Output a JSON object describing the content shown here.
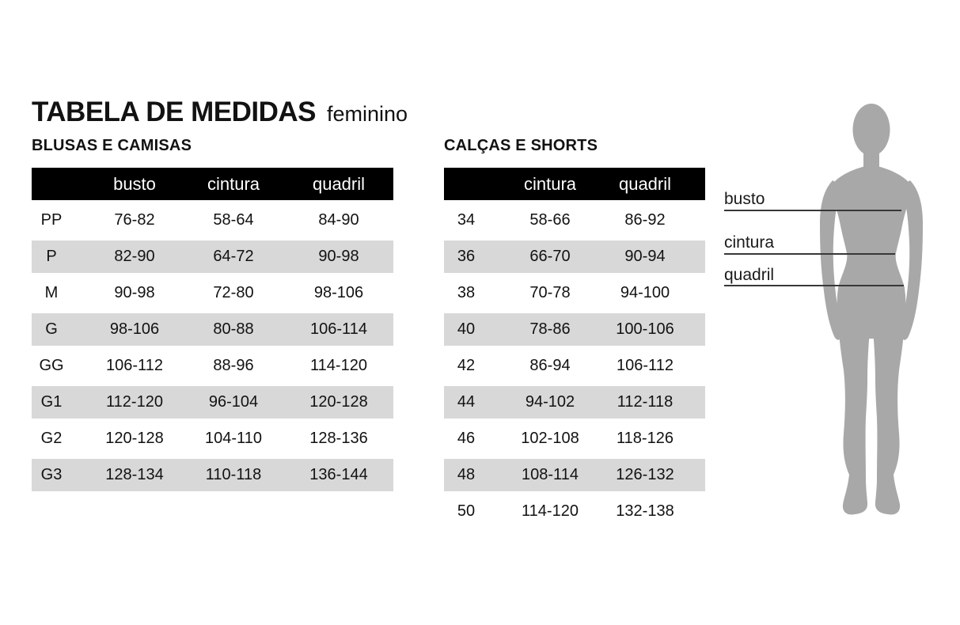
{
  "page": {
    "title": "TABELA DE MEDIDAS",
    "subtitle": "feminino"
  },
  "tables": [
    {
      "section": "BLUSAS E CAMISAS",
      "headers": [
        "",
        "busto",
        "cintura",
        "quadril"
      ],
      "rows": [
        [
          "PP",
          "76-82",
          "58-64",
          "84-90"
        ],
        [
          "P",
          "82-90",
          "64-72",
          "90-98"
        ],
        [
          "M",
          "90-98",
          "72-80",
          "98-106"
        ],
        [
          "G",
          "98-106",
          "80-88",
          "106-114"
        ],
        [
          "GG",
          "106-112",
          "88-96",
          "114-120"
        ],
        [
          "G1",
          "112-120",
          "96-104",
          "120-128"
        ],
        [
          "G2",
          "120-128",
          "104-110",
          "128-136"
        ],
        [
          "G3",
          "128-134",
          "110-118",
          "136-144"
        ]
      ]
    },
    {
      "section": "CALÇAS E SHORTS",
      "headers": [
        "",
        "cintura",
        "quadril"
      ],
      "rows": [
        [
          "34",
          "58-66",
          "86-92"
        ],
        [
          "36",
          "66-70",
          "90-94"
        ],
        [
          "38",
          "70-78",
          "94-100"
        ],
        [
          "40",
          "78-86",
          "100-106"
        ],
        [
          "42",
          "86-94",
          "106-112"
        ],
        [
          "44",
          "94-102",
          "112-118"
        ],
        [
          "46",
          "102-108",
          "118-126"
        ],
        [
          "48",
          "108-114",
          "126-132"
        ],
        [
          "50",
          "114-120",
          "132-138"
        ]
      ]
    }
  ],
  "figure": {
    "labels": [
      "busto",
      "cintura",
      "quadril"
    ]
  },
  "colors": {
    "header_bg": "#000000",
    "row_alt_bg": "#d8d8d8",
    "text": "#121212",
    "figure_fill": "#a8a8a8",
    "measure_line": "#383838"
  }
}
